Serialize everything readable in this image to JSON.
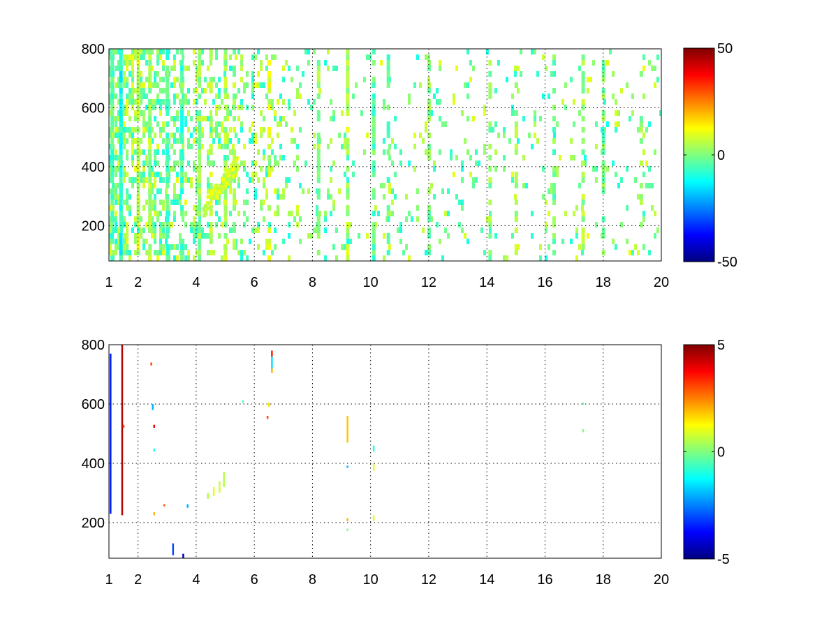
{
  "chart_data": [
    {
      "type": "heatmap",
      "title": "",
      "xlabel": "",
      "ylabel": "",
      "xlim": [
        1,
        20
      ],
      "ylim": [
        80,
        800
      ],
      "x_ticks": [
        "1",
        "2",
        "4",
        "6",
        "8",
        "10",
        "12",
        "14",
        "16",
        "18",
        "20"
      ],
      "y_ticks": [
        "200",
        "400",
        "600",
        "800"
      ],
      "grid": true,
      "colormap": "jet",
      "colorbar": {
        "min": -50,
        "max": 50,
        "ticks": [
          "50",
          "0",
          "-50"
        ]
      },
      "content": "dense",
      "columns": [
        {
          "x": 1.1,
          "density": 0.9,
          "value": -5
        },
        {
          "x": 1.4,
          "density": 0.95,
          "value": -10
        },
        {
          "x": 2.0,
          "density": 0.9,
          "value": 6
        },
        {
          "x": 2.4,
          "density": 0.85,
          "value": 3
        },
        {
          "x": 3.0,
          "density": 0.8,
          "value": -4
        },
        {
          "x": 3.5,
          "density": 0.8,
          "value": -6
        },
        {
          "x": 4.1,
          "density": 0.75,
          "value": 2
        },
        {
          "x": 4.5,
          "density": 0.7,
          "value": 5
        },
        {
          "x": 5.0,
          "density": 0.7,
          "value": 4
        },
        {
          "x": 5.3,
          "density": 0.65,
          "value": 3
        },
        {
          "x": 6.5,
          "density": 0.5,
          "value": 8
        },
        {
          "x": 8.2,
          "density": 0.55,
          "value": 2
        },
        {
          "x": 9.2,
          "density": 0.75,
          "value": 5
        },
        {
          "x": 10.1,
          "density": 0.75,
          "value": -3
        },
        {
          "x": 10.6,
          "density": 0.5,
          "value": -2
        },
        {
          "x": 12.0,
          "density": 0.45,
          "value": 0
        },
        {
          "x": 14.1,
          "density": 0.5,
          "value": 2
        },
        {
          "x": 15.0,
          "density": 0.45,
          "value": 4
        },
        {
          "x": 16.3,
          "density": 0.6,
          "value": -2
        },
        {
          "x": 17.3,
          "density": 0.7,
          "value": 3
        },
        {
          "x": 18.0,
          "density": 0.6,
          "value": -1
        },
        {
          "x": 19.3,
          "density": 0.45,
          "value": 2
        }
      ],
      "blob": {
        "x_start": 4.2,
        "x_end": 5.4,
        "y_start": 260,
        "y_end": 420,
        "value": 8
      }
    },
    {
      "type": "heatmap",
      "title": "",
      "xlabel": "",
      "ylabel": "",
      "xlim": [
        1,
        20
      ],
      "ylim": [
        80,
        800
      ],
      "x_ticks": [
        "1",
        "2",
        "4",
        "6",
        "8",
        "10",
        "12",
        "14",
        "16",
        "18",
        "20"
      ],
      "y_ticks": [
        "200",
        "400",
        "600",
        "800"
      ],
      "grid": true,
      "colormap": "jet",
      "colorbar": {
        "min": -5,
        "max": 5,
        "ticks": [
          "5",
          "0",
          "-5"
        ]
      },
      "content": "sparse",
      "marks": [
        {
          "x": 1.05,
          "y0": 230,
          "y1": 770,
          "value": -3.5
        },
        {
          "x": 1.45,
          "y0": 225,
          "y1": 800,
          "value": 4.5
        },
        {
          "x": 1.5,
          "y0": 520,
          "y1": 530,
          "value": 3
        },
        {
          "x": 2.45,
          "y0": 730,
          "y1": 740,
          "value": 3
        },
        {
          "x": 2.5,
          "y0": 580,
          "y1": 600,
          "value": -2
        },
        {
          "x": 2.55,
          "y0": 520,
          "y1": 530,
          "value": 4
        },
        {
          "x": 2.55,
          "y0": 440,
          "y1": 450,
          "value": -1
        },
        {
          "x": 2.55,
          "y0": 225,
          "y1": 235,
          "value": 2
        },
        {
          "x": 2.9,
          "y0": 255,
          "y1": 262,
          "value": 3
        },
        {
          "x": 3.2,
          "y0": 90,
          "y1": 130,
          "value": -3
        },
        {
          "x": 3.55,
          "y0": 80,
          "y1": 95,
          "value": -4.5
        },
        {
          "x": 3.7,
          "y0": 250,
          "y1": 262,
          "value": -2
        },
        {
          "x": 4.4,
          "y0": 280,
          "y1": 300,
          "value": 0.5
        },
        {
          "x": 4.6,
          "y0": 290,
          "y1": 320,
          "value": 1
        },
        {
          "x": 4.8,
          "y0": 300,
          "y1": 340,
          "value": 0.8
        },
        {
          "x": 4.95,
          "y0": 320,
          "y1": 370,
          "value": 0.5
        },
        {
          "x": 5.6,
          "y0": 605,
          "y1": 612,
          "value": -0.8
        },
        {
          "x": 6.45,
          "y0": 550,
          "y1": 560,
          "value": 3
        },
        {
          "x": 6.5,
          "y0": 590,
          "y1": 605,
          "value": 1.5
        },
        {
          "x": 6.6,
          "y0": 705,
          "y1": 720,
          "value": 2
        },
        {
          "x": 6.6,
          "y0": 720,
          "y1": 760,
          "value": -1.5
        },
        {
          "x": 6.6,
          "y0": 760,
          "y1": 780,
          "value": 3.5
        },
        {
          "x": 9.2,
          "y0": 470,
          "y1": 560,
          "value": 1.8
        },
        {
          "x": 9.2,
          "y0": 385,
          "y1": 392,
          "value": -2
        },
        {
          "x": 9.2,
          "y0": 205,
          "y1": 215,
          "value": 2
        },
        {
          "x": 9.2,
          "y0": 172,
          "y1": 180,
          "value": 0
        },
        {
          "x": 10.1,
          "y0": 440,
          "y1": 460,
          "value": -1
        },
        {
          "x": 10.1,
          "y0": 375,
          "y1": 400,
          "value": 1
        },
        {
          "x": 10.1,
          "y0": 205,
          "y1": 225,
          "value": 1
        },
        {
          "x": 17.3,
          "y0": 505,
          "y1": 515,
          "value": 0
        },
        {
          "x": 17.3,
          "y0": 598,
          "y1": 605,
          "value": -0.3
        }
      ]
    }
  ]
}
